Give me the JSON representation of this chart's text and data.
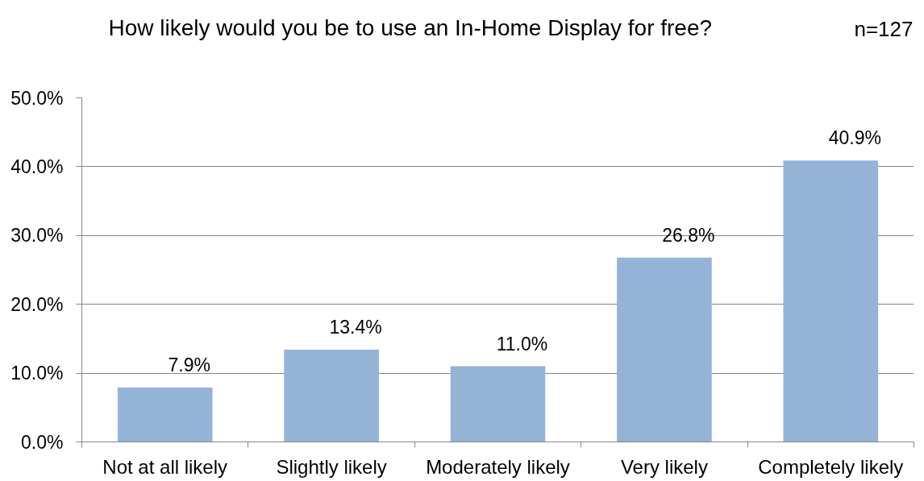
{
  "chart_data": {
    "type": "bar",
    "title": "How likely would you be to use an In-Home Display for free?",
    "annotations": [
      "n=127"
    ],
    "categories": [
      "Not at all likely",
      "Slightly likely",
      "Moderately likely",
      "Very likely",
      "Completely likely"
    ],
    "values": [
      7.9,
      13.4,
      11.0,
      26.8,
      40.9
    ],
    "value_labels": [
      "7.9%",
      "13.4%",
      "11.0%",
      "26.8%",
      "40.9%"
    ],
    "color": "#95b3d7",
    "ylim": [
      0,
      50
    ],
    "yticks": [
      {
        "value": 0,
        "label": "0.0%"
      },
      {
        "value": 10,
        "label": "10.0%"
      },
      {
        "value": 20,
        "label": "20.0%"
      },
      {
        "value": 30,
        "label": "30.0%"
      },
      {
        "value": 40,
        "label": "40.0%"
      },
      {
        "value": 50,
        "label": "50.0%"
      }
    ],
    "grid": "y"
  }
}
